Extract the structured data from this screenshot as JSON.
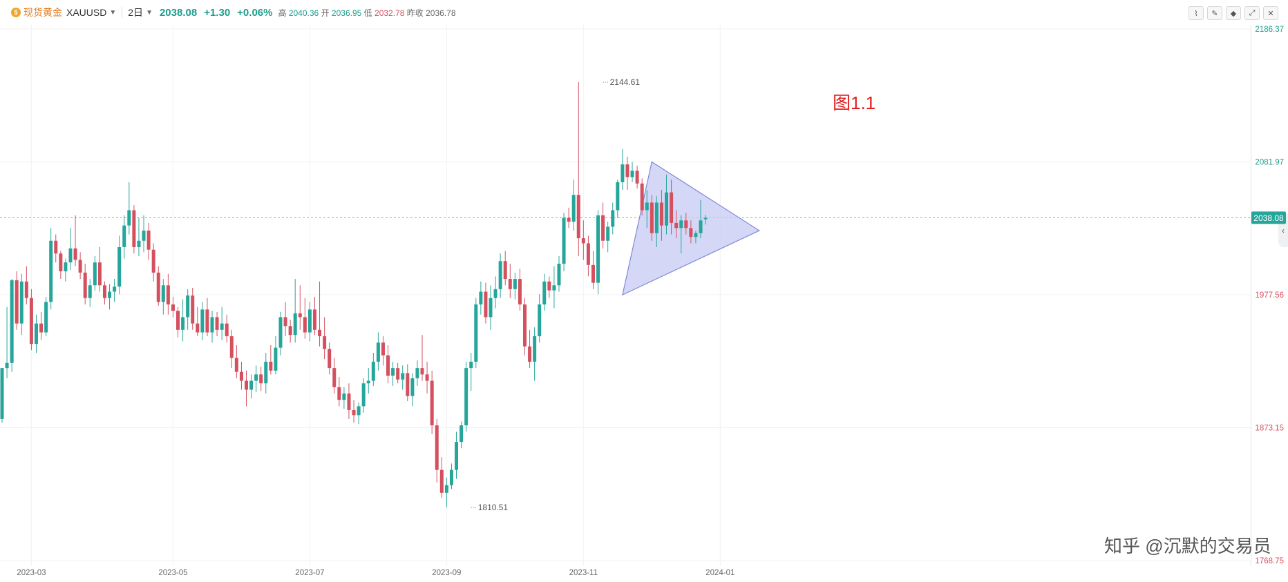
{
  "header": {
    "symbol_cn": "现货黄金",
    "symbol": "XAUUSD",
    "interval": "2日",
    "last": "2038.08",
    "change": "+1.30",
    "change_pct": "+0.06%",
    "high_label": "高",
    "high": "2040.36",
    "open_label": "开",
    "open": "2036.95",
    "low_label": "低",
    "low": "2032.78",
    "prev_label": "昨收",
    "prev": "2036.78"
  },
  "toolbar": {
    "icons": [
      "indicator-icon",
      "draw-icon",
      "settings-icon",
      "fullscreen-icon",
      "close-icon"
    ]
  },
  "annotation": "图1.1",
  "watermark": "知乎 @沉默的交易员",
  "colors": {
    "up": "#26a69a",
    "down": "#d4505f",
    "triangle_fill": "#c5c9f3",
    "triangle_stroke": "#7f88d6",
    "current_line": "#26a69a"
  },
  "chart_data": {
    "type": "candlestick",
    "ylim": [
      1768.75,
      2186.37
    ],
    "price_labels": [
      {
        "value": 2186.37,
        "text": "2186.37",
        "color": "#1a9e8c"
      },
      {
        "value": 2081.97,
        "text": "2081.97",
        "color": "#1a9e8c"
      },
      {
        "value": 1977.56,
        "text": "1977.56",
        "color": "#d4505f"
      },
      {
        "value": 1873.15,
        "text": "1873.15",
        "color": "#d4505f"
      },
      {
        "value": 1768.75,
        "text": "1768.75",
        "color": "#d4505f"
      }
    ],
    "current_price": 2038.08,
    "current_price_label": "2038.08",
    "date_labels": [
      {
        "index": 6,
        "text": "2023-03"
      },
      {
        "index": 35,
        "text": "2023-05"
      },
      {
        "index": 63,
        "text": "2023-07"
      },
      {
        "index": 91,
        "text": "2023-09"
      },
      {
        "index": 119,
        "text": "2023-11"
      },
      {
        "index": 147,
        "text": "2024-01"
      }
    ],
    "high_marker": {
      "index": 123,
      "value": 2144.61,
      "text": "2144.61"
    },
    "low_marker": {
      "index": 96,
      "value": 1810.51,
      "text": "1810.51"
    },
    "triangle": [
      {
        "index": 127,
        "value": 1977.5
      },
      {
        "index": 133,
        "value": 2082.0
      },
      {
        "index": 155,
        "value": 2028.0
      }
    ],
    "candles": [
      [
        1880,
        1920,
        1877,
        1920
      ],
      [
        1920,
        1968,
        1912,
        1924
      ],
      [
        1924,
        1990,
        1917,
        1989
      ],
      [
        1989,
        1996,
        1950,
        1955
      ],
      [
        1955,
        1994,
        1946,
        1988
      ],
      [
        1988,
        2000,
        1970,
        1975
      ],
      [
        1975,
        1982,
        1934,
        1939
      ],
      [
        1939,
        1962,
        1932,
        1955
      ],
      [
        1955,
        1964,
        1942,
        1948
      ],
      [
        1948,
        1976,
        1945,
        1972
      ],
      [
        1972,
        2030,
        1966,
        2020
      ],
      [
        2020,
        2025,
        2003,
        2010
      ],
      [
        2010,
        2012,
        1990,
        1996
      ],
      [
        1996,
        2006,
        1988,
        2003
      ],
      [
        2003,
        2030,
        1997,
        2014
      ],
      [
        2014,
        2040,
        2000,
        2005
      ],
      [
        2005,
        2011,
        1990,
        1995
      ],
      [
        1995,
        2002,
        1970,
        1975
      ],
      [
        1975,
        1990,
        1968,
        1985
      ],
      [
        1985,
        2008,
        1981,
        2003
      ],
      [
        2003,
        2015,
        1980,
        1985
      ],
      [
        1985,
        1988,
        1970,
        1975
      ],
      [
        1975,
        1986,
        1966,
        1980
      ],
      [
        1980,
        1990,
        1972,
        1984
      ],
      [
        1984,
        2024,
        1978,
        2015
      ],
      [
        2015,
        2040,
        2006,
        2032
      ],
      [
        2032,
        2066,
        2025,
        2044
      ],
      [
        2044,
        2048,
        2010,
        2015
      ],
      [
        2015,
        2038,
        2008,
        2020
      ],
      [
        2020,
        2040,
        2011,
        2028
      ],
      [
        2028,
        2034,
        2005,
        2013
      ],
      [
        2013,
        2018,
        1988,
        1995
      ],
      [
        1995,
        2000,
        1969,
        1972
      ],
      [
        1972,
        1990,
        1962,
        1985
      ],
      [
        1985,
        1994,
        1962,
        1970
      ],
      [
        1970,
        1976,
        1960,
        1965
      ],
      [
        1965,
        1968,
        1944,
        1950
      ],
      [
        1950,
        1974,
        1941,
        1960
      ],
      [
        1960,
        1982,
        1950,
        1977
      ],
      [
        1977,
        1983,
        1950,
        1955
      ],
      [
        1955,
        1968,
        1945,
        1948
      ],
      [
        1948,
        1972,
        1942,
        1966
      ],
      [
        1966,
        1975,
        1945,
        1948
      ],
      [
        1948,
        1965,
        1940,
        1960
      ],
      [
        1960,
        1964,
        1945,
        1950
      ],
      [
        1950,
        1968,
        1942,
        1955
      ],
      [
        1955,
        1962,
        1940,
        1945
      ],
      [
        1945,
        1950,
        1920,
        1928
      ],
      [
        1928,
        1938,
        1912,
        1917
      ],
      [
        1917,
        1925,
        1903,
        1910
      ],
      [
        1910,
        1918,
        1890,
        1903
      ],
      [
        1903,
        1915,
        1896,
        1910
      ],
      [
        1910,
        1922,
        1901,
        1915
      ],
      [
        1915,
        1921,
        1902,
        1908
      ],
      [
        1908,
        1932,
        1900,
        1925
      ],
      [
        1925,
        1938,
        1915,
        1918
      ],
      [
        1918,
        1945,
        1915,
        1936
      ],
      [
        1936,
        1964,
        1930,
        1960
      ],
      [
        1960,
        1972,
        1945,
        1953
      ],
      [
        1953,
        1958,
        1940,
        1946
      ],
      [
        1946,
        1990,
        1940,
        1963
      ],
      [
        1963,
        1985,
        1950,
        1960
      ],
      [
        1960,
        1975,
        1943,
        1948
      ],
      [
        1948,
        1972,
        1941,
        1966
      ],
      [
        1966,
        1976,
        1946,
        1950
      ],
      [
        1950,
        1988,
        1937,
        1945
      ],
      [
        1945,
        1960,
        1927,
        1935
      ],
      [
        1935,
        1940,
        1915,
        1920
      ],
      [
        1920,
        1928,
        1900,
        1905
      ],
      [
        1905,
        1913,
        1890,
        1895
      ],
      [
        1895,
        1905,
        1888,
        1900
      ],
      [
        1900,
        1908,
        1880,
        1887
      ],
      [
        1887,
        1895,
        1877,
        1883
      ],
      [
        1883,
        1893,
        1876,
        1890
      ],
      [
        1890,
        1912,
        1885,
        1908
      ],
      [
        1908,
        1920,
        1900,
        1910
      ],
      [
        1910,
        1932,
        1906,
        1925
      ],
      [
        1925,
        1948,
        1918,
        1940
      ],
      [
        1940,
        1945,
        1922,
        1930
      ],
      [
        1930,
        1938,
        1908,
        1914
      ],
      [
        1914,
        1925,
        1906,
        1920
      ],
      [
        1920,
        1924,
        1908,
        1911
      ],
      [
        1911,
        1922,
        1903,
        1916
      ],
      [
        1916,
        1923,
        1894,
        1898
      ],
      [
        1898,
        1916,
        1890,
        1912
      ],
      [
        1912,
        1926,
        1906,
        1920
      ],
      [
        1920,
        1946,
        1910,
        1915
      ],
      [
        1915,
        1925,
        1900,
        1910
      ],
      [
        1910,
        1918,
        1868,
        1875
      ],
      [
        1875,
        1880,
        1830,
        1840
      ],
      [
        1840,
        1850,
        1818,
        1822
      ],
      [
        1822,
        1834,
        1810.51,
        1828
      ],
      [
        1828,
        1845,
        1825,
        1840
      ],
      [
        1840,
        1870,
        1833,
        1862
      ],
      [
        1862,
        1878,
        1857,
        1875
      ],
      [
        1875,
        1925,
        1870,
        1920
      ],
      [
        1920,
        1932,
        1902,
        1925
      ],
      [
        1925,
        1975,
        1920,
        1970
      ],
      [
        1970,
        1988,
        1962,
        1980
      ],
      [
        1980,
        1987,
        1955,
        1960
      ],
      [
        1960,
        1985,
        1950,
        1975
      ],
      [
        1975,
        1992,
        1967,
        1982
      ],
      [
        1982,
        2010,
        1975,
        2004
      ],
      [
        2004,
        2012,
        1985,
        1990
      ],
      [
        1990,
        2002,
        1975,
        1982
      ],
      [
        1982,
        1995,
        1974,
        1990
      ],
      [
        1990,
        1998,
        1965,
        1970
      ],
      [
        1970,
        1975,
        1930,
        1937
      ],
      [
        1937,
        1950,
        1920,
        1925
      ],
      [
        1925,
        1952,
        1910,
        1945
      ],
      [
        1945,
        1978,
        1940,
        1970
      ],
      [
        1970,
        1994,
        1965,
        1988
      ],
      [
        1988,
        1992,
        1975,
        1981
      ],
      [
        1981,
        2000,
        1967,
        1985
      ],
      [
        1985,
        2008,
        1980,
        2002
      ],
      [
        2002,
        2042,
        1996,
        2038
      ],
      [
        2038,
        2046,
        2030,
        2035
      ],
      [
        2035,
        2068,
        2028,
        2056
      ],
      [
        2056,
        2144.61,
        2008,
        2022
      ],
      [
        2022,
        2036,
        2005,
        2018
      ],
      [
        2018,
        2024,
        1992,
        2001
      ],
      [
        2001,
        2012,
        1982,
        1987
      ],
      [
        1987,
        2044,
        1978,
        2040
      ],
      [
        2040,
        2050,
        2014,
        2020
      ],
      [
        2020,
        2035,
        2011,
        2031
      ],
      [
        2031,
        2050,
        2025,
        2044
      ],
      [
        2044,
        2068,
        2038,
        2066
      ],
      [
        2066,
        2092,
        2060,
        2080
      ],
      [
        2080,
        2086,
        2060,
        2070
      ],
      [
        2070,
        2082,
        2066,
        2075
      ],
      [
        2075,
        2079,
        2061,
        2065
      ],
      [
        2065,
        2069,
        2040,
        2044
      ],
      [
        2044,
        2060,
        2030,
        2050
      ],
      [
        2050,
        2056,
        2020,
        2026
      ],
      [
        2026,
        2055,
        2015,
        2050
      ],
      [
        2050,
        2060,
        2020,
        2032
      ],
      [
        2032,
        2072,
        2025,
        2058
      ],
      [
        2058,
        2068,
        2025,
        2034
      ],
      [
        2034,
        2044,
        2022,
        2030
      ],
      [
        2030,
        2040,
        2010,
        2036
      ],
      [
        2036,
        2042,
        2025,
        2030
      ],
      [
        2030,
        2036,
        2018,
        2023
      ],
      [
        2023,
        2028,
        2018,
        2026
      ],
      [
        2026,
        2052,
        2022,
        2036
      ],
      [
        2036.95,
        2040.36,
        2032.78,
        2038.08
      ]
    ]
  }
}
